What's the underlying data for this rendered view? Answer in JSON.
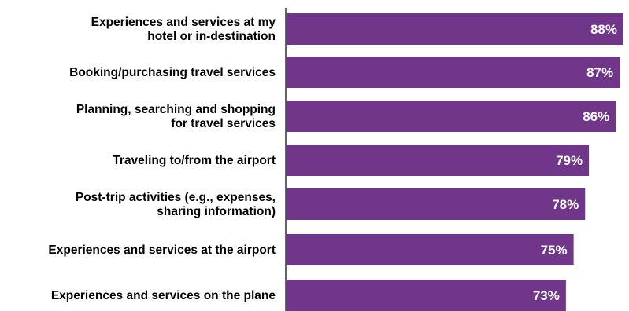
{
  "chart_data": {
    "type": "bar",
    "orientation": "horizontal",
    "title": "",
    "xlabel": "",
    "ylabel": "",
    "categories": [
      [
        "Experiences and services at my",
        "hotel or in-destination"
      ],
      [
        "Booking/purchasing travel services"
      ],
      [
        "Planning, searching and shopping",
        "for travel services"
      ],
      [
        "Traveling to/from the airport"
      ],
      [
        "Post-trip activities (e.g., expenses,",
        "sharing information)"
      ],
      [
        "Experiences and services at the airport"
      ],
      [
        "Experiences and services on the plane"
      ]
    ],
    "values": [
      88,
      87,
      86,
      79,
      78,
      75,
      73
    ],
    "value_labels": [
      "88%",
      "87%",
      "86%",
      "79%",
      "78%",
      "75%",
      "73%"
    ],
    "xlim": [
      0,
      88
    ],
    "grid": false,
    "colors": {
      "bar": "#6f3689",
      "axis": "#333333",
      "label": "#000000",
      "value_text": "#ffffff"
    }
  }
}
